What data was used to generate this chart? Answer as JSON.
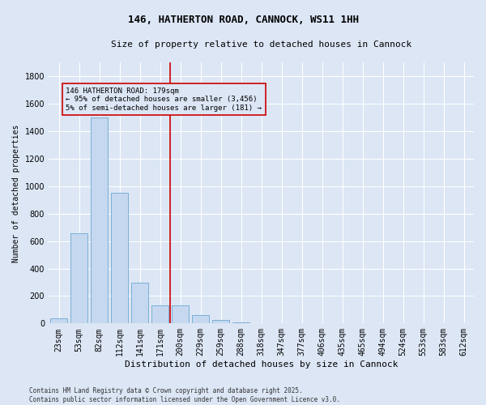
{
  "title": "146, HATHERTON ROAD, CANNOCK, WS11 1HH",
  "subtitle": "Size of property relative to detached houses in Cannock",
  "xlabel": "Distribution of detached houses by size in Cannock",
  "ylabel": "Number of detached properties",
  "bar_color": "#c5d8f0",
  "bar_edge_color": "#7aafd4",
  "background_color": "#dce6f5",
  "grid_color": "#ffffff",
  "categories": [
    "23sqm",
    "53sqm",
    "82sqm",
    "112sqm",
    "141sqm",
    "171sqm",
    "200sqm",
    "229sqm",
    "259sqm",
    "288sqm",
    "318sqm",
    "347sqm",
    "377sqm",
    "406sqm",
    "435sqm",
    "465sqm",
    "494sqm",
    "524sqm",
    "553sqm",
    "583sqm",
    "612sqm"
  ],
  "values": [
    40,
    655,
    1500,
    950,
    295,
    130,
    130,
    60,
    25,
    10,
    2,
    0,
    0,
    0,
    0,
    0,
    0,
    0,
    0,
    0,
    0
  ],
  "ylim": [
    0,
    1900
  ],
  "yticks": [
    0,
    200,
    400,
    600,
    800,
    1000,
    1200,
    1400,
    1600,
    1800
  ],
  "vline_x": 5.5,
  "vline_color": "#cc0000",
  "annotation_box_text": "146 HATHERTON ROAD: 179sqm\n← 95% of detached houses are smaller (3,456)\n5% of semi-detached houses are larger (181) →",
  "footnote": "Contains HM Land Registry data © Crown copyright and database right 2025.\nContains public sector information licensed under the Open Government Licence v3.0.",
  "title_fontsize": 9,
  "subtitle_fontsize": 8,
  "xlabel_fontsize": 8,
  "ylabel_fontsize": 7,
  "tick_fontsize": 7,
  "annot_fontsize": 6.5,
  "footnote_fontsize": 5.5
}
